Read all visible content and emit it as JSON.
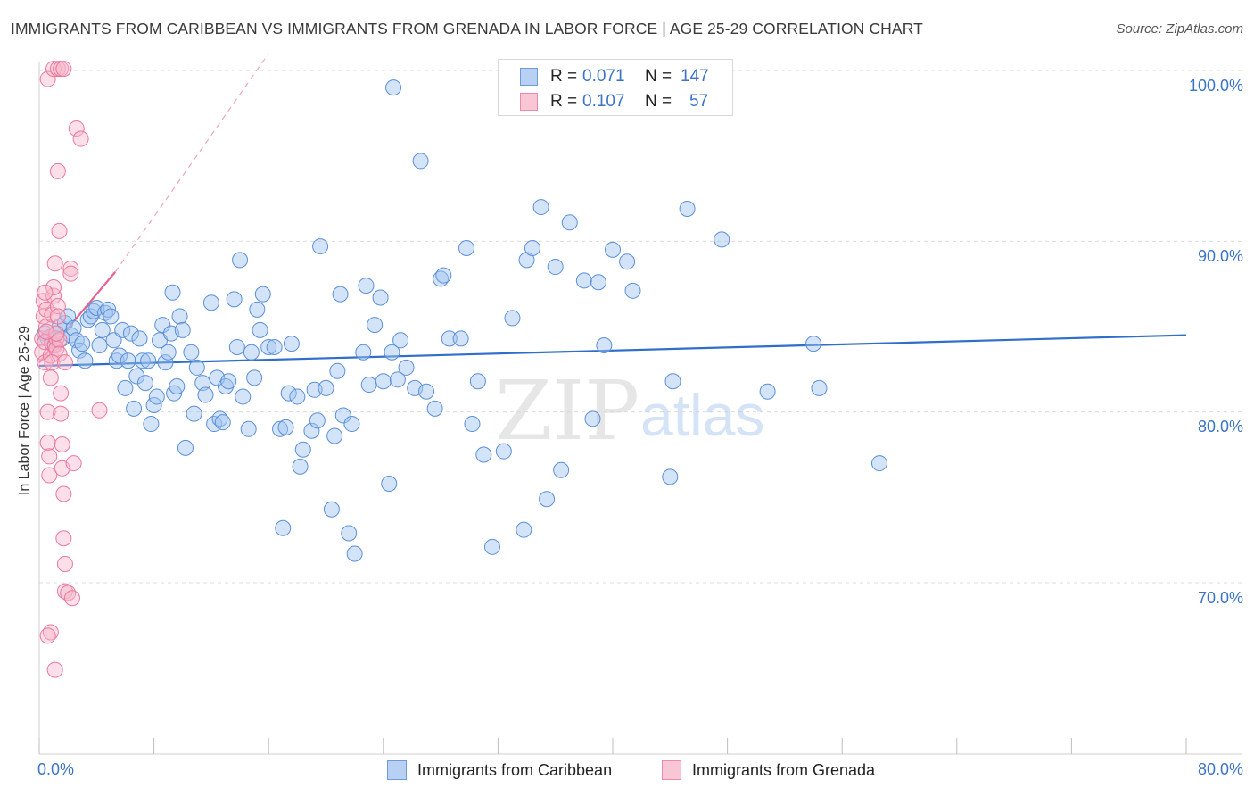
{
  "title": "IMMIGRANTS FROM CARIBBEAN VS IMMIGRANTS FROM GRENADA IN LABOR FORCE | AGE 25-29 CORRELATION CHART",
  "source": "Source: ZipAtlas.com",
  "watermark": {
    "zip": "ZIP",
    "atlas": "atlas"
  },
  "legend": {
    "series1": {
      "r_label": "R = ",
      "r_value": "0.071",
      "n_label": "N = ",
      "n_value": "147"
    },
    "series2": {
      "r_label": "R = ",
      "r_value": "0.107",
      "n_label": "N = ",
      "n_value": "57"
    }
  },
  "bottom_legend": {
    "series1": "Immigrants from Caribbean",
    "series2": "Immigrants from Grenada"
  },
  "colors": {
    "blue": "#5b8fd6",
    "blue_fill": "rgba(160,195,240,0.45)",
    "blue_line": "#2f6fcb",
    "pink": "#e9799b",
    "pink_fill": "rgba(248,185,205,0.45)",
    "pink_line": "#e8618c",
    "tick": "#3b73c7"
  },
  "chart_data": {
    "type": "scatter",
    "xlabel": "",
    "ylabel": "In Labor Force | Age 25-29",
    "xlim": [
      0,
      80
    ],
    "ylim": [
      60,
      104
    ],
    "x_tick_labels": [
      "0.0%",
      "80.0%"
    ],
    "y_ticks": [
      70,
      80,
      90,
      100
    ],
    "y_tick_labels": [
      "70.0%",
      "80.0%",
      "90.0%",
      "100.0%"
    ],
    "grid": true,
    "series": [
      {
        "name": "Immigrants from Caribbean",
        "r": 0.071,
        "n": 147,
        "trend": {
          "x": [
            0,
            80
          ],
          "y": [
            82.7,
            84.5
          ]
        },
        "points": [
          [
            0.4,
            84.6
          ],
          [
            0.6,
            84.3
          ],
          [
            0.8,
            84.4
          ],
          [
            1.0,
            83.9
          ],
          [
            1.2,
            84.6
          ],
          [
            1.4,
            85.0
          ],
          [
            1.6,
            84.3
          ],
          [
            1.8,
            85.2
          ],
          [
            2.0,
            85.6
          ],
          [
            2.2,
            84.5
          ],
          [
            2.4,
            84.9
          ],
          [
            2.6,
            84.2
          ],
          [
            2.8,
            83.6
          ],
          [
            3.0,
            84.0
          ],
          [
            3.2,
            83.0
          ],
          [
            3.4,
            85.4
          ],
          [
            3.6,
            85.6
          ],
          [
            3.8,
            85.9
          ],
          [
            4.0,
            86.1
          ],
          [
            4.2,
            83.9
          ],
          [
            4.4,
            84.8
          ],
          [
            4.6,
            85.8
          ],
          [
            4.8,
            86.0
          ],
          [
            5.0,
            85.6
          ],
          [
            5.2,
            84.2
          ],
          [
            5.4,
            83.0
          ],
          [
            5.6,
            83.3
          ],
          [
            5.8,
            84.8
          ],
          [
            6.0,
            81.4
          ],
          [
            6.2,
            83.0
          ],
          [
            6.4,
            84.6
          ],
          [
            6.6,
            80.2
          ],
          [
            6.8,
            82.1
          ],
          [
            7.0,
            84.3
          ],
          [
            7.2,
            83.0
          ],
          [
            7.4,
            81.7
          ],
          [
            7.6,
            83.0
          ],
          [
            7.8,
            79.3
          ],
          [
            8.0,
            80.4
          ],
          [
            8.2,
            80.9
          ],
          [
            8.4,
            84.2
          ],
          [
            8.6,
            85.1
          ],
          [
            8.8,
            82.9
          ],
          [
            9.0,
            83.5
          ],
          [
            9.2,
            84.6
          ],
          [
            9.4,
            81.1
          ],
          [
            9.6,
            81.5
          ],
          [
            9.8,
            85.6
          ],
          [
            10.0,
            84.8
          ],
          [
            10.2,
            77.9
          ],
          [
            10.6,
            83.5
          ],
          [
            10.8,
            79.9
          ],
          [
            11.0,
            82.6
          ],
          [
            11.4,
            81.7
          ],
          [
            11.6,
            81.0
          ],
          [
            12.0,
            86.4
          ],
          [
            12.2,
            79.3
          ],
          [
            12.4,
            82.0
          ],
          [
            12.6,
            79.6
          ],
          [
            12.8,
            79.4
          ],
          [
            13.0,
            81.5
          ],
          [
            13.2,
            81.8
          ],
          [
            13.6,
            86.6
          ],
          [
            13.8,
            83.8
          ],
          [
            14.0,
            88.9
          ],
          [
            14.2,
            80.9
          ],
          [
            14.6,
            79.0
          ],
          [
            14.8,
            83.5
          ],
          [
            15.0,
            82.0
          ],
          [
            15.2,
            86.0
          ],
          [
            15.4,
            84.8
          ],
          [
            15.6,
            86.9
          ],
          [
            16.0,
            83.8
          ],
          [
            16.4,
            83.8
          ],
          [
            16.8,
            79.0
          ],
          [
            17.0,
            73.2
          ],
          [
            17.2,
            79.1
          ],
          [
            17.4,
            81.1
          ],
          [
            17.6,
            84.0
          ],
          [
            18.0,
            80.9
          ],
          [
            18.2,
            76.8
          ],
          [
            18.4,
            77.8
          ],
          [
            19.0,
            78.9
          ],
          [
            19.2,
            81.3
          ],
          [
            19.4,
            79.5
          ],
          [
            19.6,
            89.7
          ],
          [
            20.0,
            81.4
          ],
          [
            20.4,
            74.3
          ],
          [
            20.6,
            78.6
          ],
          [
            20.8,
            82.4
          ],
          [
            21.0,
            86.9
          ],
          [
            21.2,
            79.8
          ],
          [
            21.6,
            72.9
          ],
          [
            21.8,
            79.3
          ],
          [
            22.0,
            71.7
          ],
          [
            22.6,
            83.5
          ],
          [
            22.8,
            87.4
          ],
          [
            23.0,
            81.6
          ],
          [
            23.4,
            85.1
          ],
          [
            23.8,
            86.7
          ],
          [
            24.0,
            81.8
          ],
          [
            24.4,
            75.8
          ],
          [
            24.6,
            83.5
          ],
          [
            25.0,
            81.9
          ],
          [
            25.2,
            84.2
          ],
          [
            25.6,
            82.6
          ],
          [
            26.2,
            81.4
          ],
          [
            26.6,
            94.7
          ],
          [
            27.0,
            81.2
          ],
          [
            27.6,
            80.2
          ],
          [
            28.0,
            87.8
          ],
          [
            28.2,
            88.0
          ],
          [
            28.6,
            84.3
          ],
          [
            29.4,
            84.3
          ],
          [
            29.8,
            89.6
          ],
          [
            30.2,
            79.3
          ],
          [
            30.6,
            81.8
          ],
          [
            31.0,
            77.5
          ],
          [
            31.6,
            72.1
          ],
          [
            32.4,
            77.7
          ],
          [
            33.0,
            85.5
          ],
          [
            33.8,
            73.1
          ],
          [
            34.0,
            88.9
          ],
          [
            34.4,
            89.6
          ],
          [
            35.0,
            92.0
          ],
          [
            35.4,
            74.9
          ],
          [
            36.0,
            88.5
          ],
          [
            36.4,
            76.6
          ],
          [
            37.0,
            91.1
          ],
          [
            38.0,
            87.7
          ],
          [
            38.6,
            79.6
          ],
          [
            39.0,
            87.6
          ],
          [
            39.4,
            83.9
          ],
          [
            40.0,
            89.5
          ],
          [
            41.0,
            88.8
          ],
          [
            41.4,
            87.1
          ],
          [
            44.0,
            76.2
          ],
          [
            44.2,
            81.8
          ],
          [
            45.2,
            91.9
          ],
          [
            47.6,
            90.1
          ],
          [
            50.8,
            81.2
          ],
          [
            54.0,
            84.0
          ],
          [
            54.4,
            81.4
          ],
          [
            58.6,
            77.0
          ],
          [
            24.7,
            99.0
          ],
          [
            9.3,
            87.0
          ]
        ]
      },
      {
        "name": "Immigrants from Grenada",
        "r": 0.107,
        "n": 57,
        "trend": {
          "x": [
            0,
            5.3
          ],
          "y": [
            82.9,
            88.2
          ]
        },
        "trend_extension": {
          "x": [
            5.3,
            16.0
          ],
          "y": [
            88.2,
            101.0
          ]
        },
        "points": [
          [
            0.2,
            84.3
          ],
          [
            0.2,
            83.5
          ],
          [
            0.3,
            85.6
          ],
          [
            0.3,
            86.5
          ],
          [
            0.4,
            84.1
          ],
          [
            0.4,
            82.9
          ],
          [
            0.5,
            86.0
          ],
          [
            0.5,
            85.0
          ],
          [
            0.6,
            80.0
          ],
          [
            0.6,
            78.2
          ],
          [
            0.7,
            77.4
          ],
          [
            0.7,
            76.3
          ],
          [
            0.8,
            83.3
          ],
          [
            0.8,
            82.0
          ],
          [
            0.9,
            84.0
          ],
          [
            0.9,
            85.7
          ],
          [
            1.0,
            86.8
          ],
          [
            1.0,
            87.3
          ],
          [
            1.1,
            88.7
          ],
          [
            1.1,
            83.9
          ],
          [
            1.2,
            84.3
          ],
          [
            1.2,
            83.7
          ],
          [
            1.3,
            86.2
          ],
          [
            1.3,
            85.6
          ],
          [
            1.4,
            84.2
          ],
          [
            1.4,
            83.4
          ],
          [
            1.5,
            81.1
          ],
          [
            1.5,
            79.9
          ],
          [
            1.6,
            78.1
          ],
          [
            1.6,
            76.7
          ],
          [
            1.7,
            75.2
          ],
          [
            1.7,
            72.6
          ],
          [
            1.8,
            71.1
          ],
          [
            1.8,
            69.5
          ],
          [
            0.8,
            67.1
          ],
          [
            0.6,
            66.9
          ],
          [
            1.1,
            64.9
          ],
          [
            0.6,
            99.5
          ],
          [
            1.0,
            100.1
          ],
          [
            1.3,
            100.1
          ],
          [
            1.5,
            100.1
          ],
          [
            1.7,
            100.1
          ],
          [
            2.6,
            96.6
          ],
          [
            2.9,
            96.0
          ],
          [
            1.3,
            94.1
          ],
          [
            1.4,
            90.6
          ],
          [
            2.2,
            88.4
          ],
          [
            2.2,
            88.1
          ],
          [
            2.4,
            77.0
          ],
          [
            2.0,
            69.4
          ],
          [
            4.2,
            80.1
          ],
          [
            1.2,
            84.6
          ],
          [
            0.9,
            82.9
          ],
          [
            1.8,
            82.9
          ],
          [
            2.3,
            69.1
          ],
          [
            0.4,
            87.0
          ],
          [
            0.5,
            84.7
          ]
        ]
      }
    ]
  }
}
